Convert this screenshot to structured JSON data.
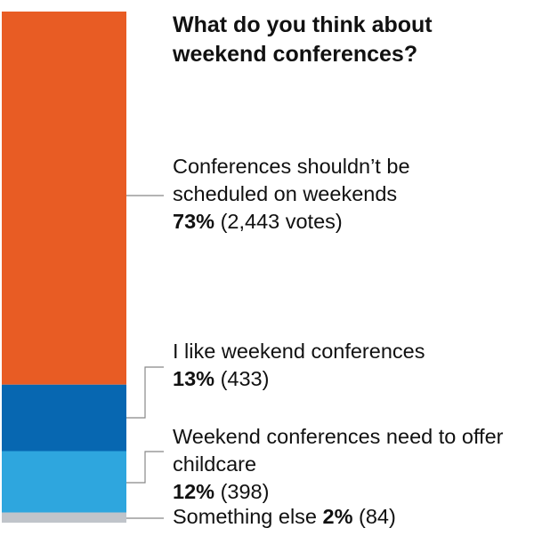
{
  "chart_data": {
    "type": "bar",
    "stacked": true,
    "title": "What do you think about weekend conferences?",
    "categories": [
      "Conferences shouldn’t be scheduled on weekends",
      "I like weekend conferences",
      "Weekend conferences need to offer childcare",
      "Something else"
    ],
    "values": [
      73,
      13,
      12,
      2
    ],
    "votes": [
      "2,443",
      "433",
      "398",
      "84"
    ],
    "value_labels": [
      "73%",
      "13%",
      "12%",
      "2%"
    ],
    "vote_labels": [
      "(2,443 votes)",
      "(433)",
      "(398)",
      "(84)"
    ],
    "colors": [
      "#e85c24",
      "#0767b1",
      "#2ea6de",
      "#c0c4ca"
    ],
    "ylim": [
      0,
      100
    ]
  }
}
